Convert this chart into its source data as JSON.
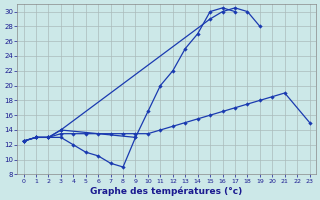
{
  "title": "Graphe des températures (°c)",
  "background_color": "#cce8e8",
  "grid_color": "#aabbbb",
  "line_color": "#1a3ab0",
  "xlim": [
    -0.5,
    23.5
  ],
  "ylim": [
    8,
    31
  ],
  "yticks": [
    8,
    10,
    12,
    14,
    16,
    18,
    20,
    22,
    24,
    26,
    28,
    30
  ],
  "xticks": [
    0,
    1,
    2,
    3,
    4,
    5,
    6,
    7,
    8,
    9,
    10,
    11,
    12,
    13,
    14,
    15,
    16,
    17,
    18,
    19,
    20,
    21,
    22,
    23
  ],
  "hours": [
    0,
    1,
    2,
    3,
    4,
    5,
    6,
    7,
    8,
    9,
    10,
    11,
    12,
    13,
    14,
    15,
    16,
    17,
    18,
    19,
    20,
    21,
    22,
    23
  ],
  "line1": [
    12.5,
    13,
    13,
    14,
    null,
    null,
    null,
    null,
    null,
    13,
    16.5,
    20,
    22,
    25,
    27,
    30,
    30.5,
    30,
    null,
    null,
    null,
    null,
    null,
    null
  ],
  "line2": [
    12.5,
    13,
    13,
    14,
    null,
    null,
    null,
    null,
    null,
    null,
    null,
    null,
    null,
    null,
    null,
    29,
    30,
    30.5,
    30,
    28,
    null,
    null,
    null,
    null
  ],
  "line3": [
    12.5,
    13,
    13,
    13.5,
    13.5,
    13.5,
    13.5,
    13.5,
    13.5,
    13.5,
    13.5,
    14,
    14.5,
    15,
    15.5,
    16,
    16.5,
    17,
    17.5,
    18,
    18.5,
    19,
    null,
    15
  ],
  "line4": [
    12.5,
    13,
    13,
    13,
    12,
    11,
    10.5,
    9.5,
    9,
    13,
    null,
    null,
    null,
    null,
    null,
    null,
    null,
    null,
    null,
    null,
    null,
    null,
    null,
    null
  ]
}
